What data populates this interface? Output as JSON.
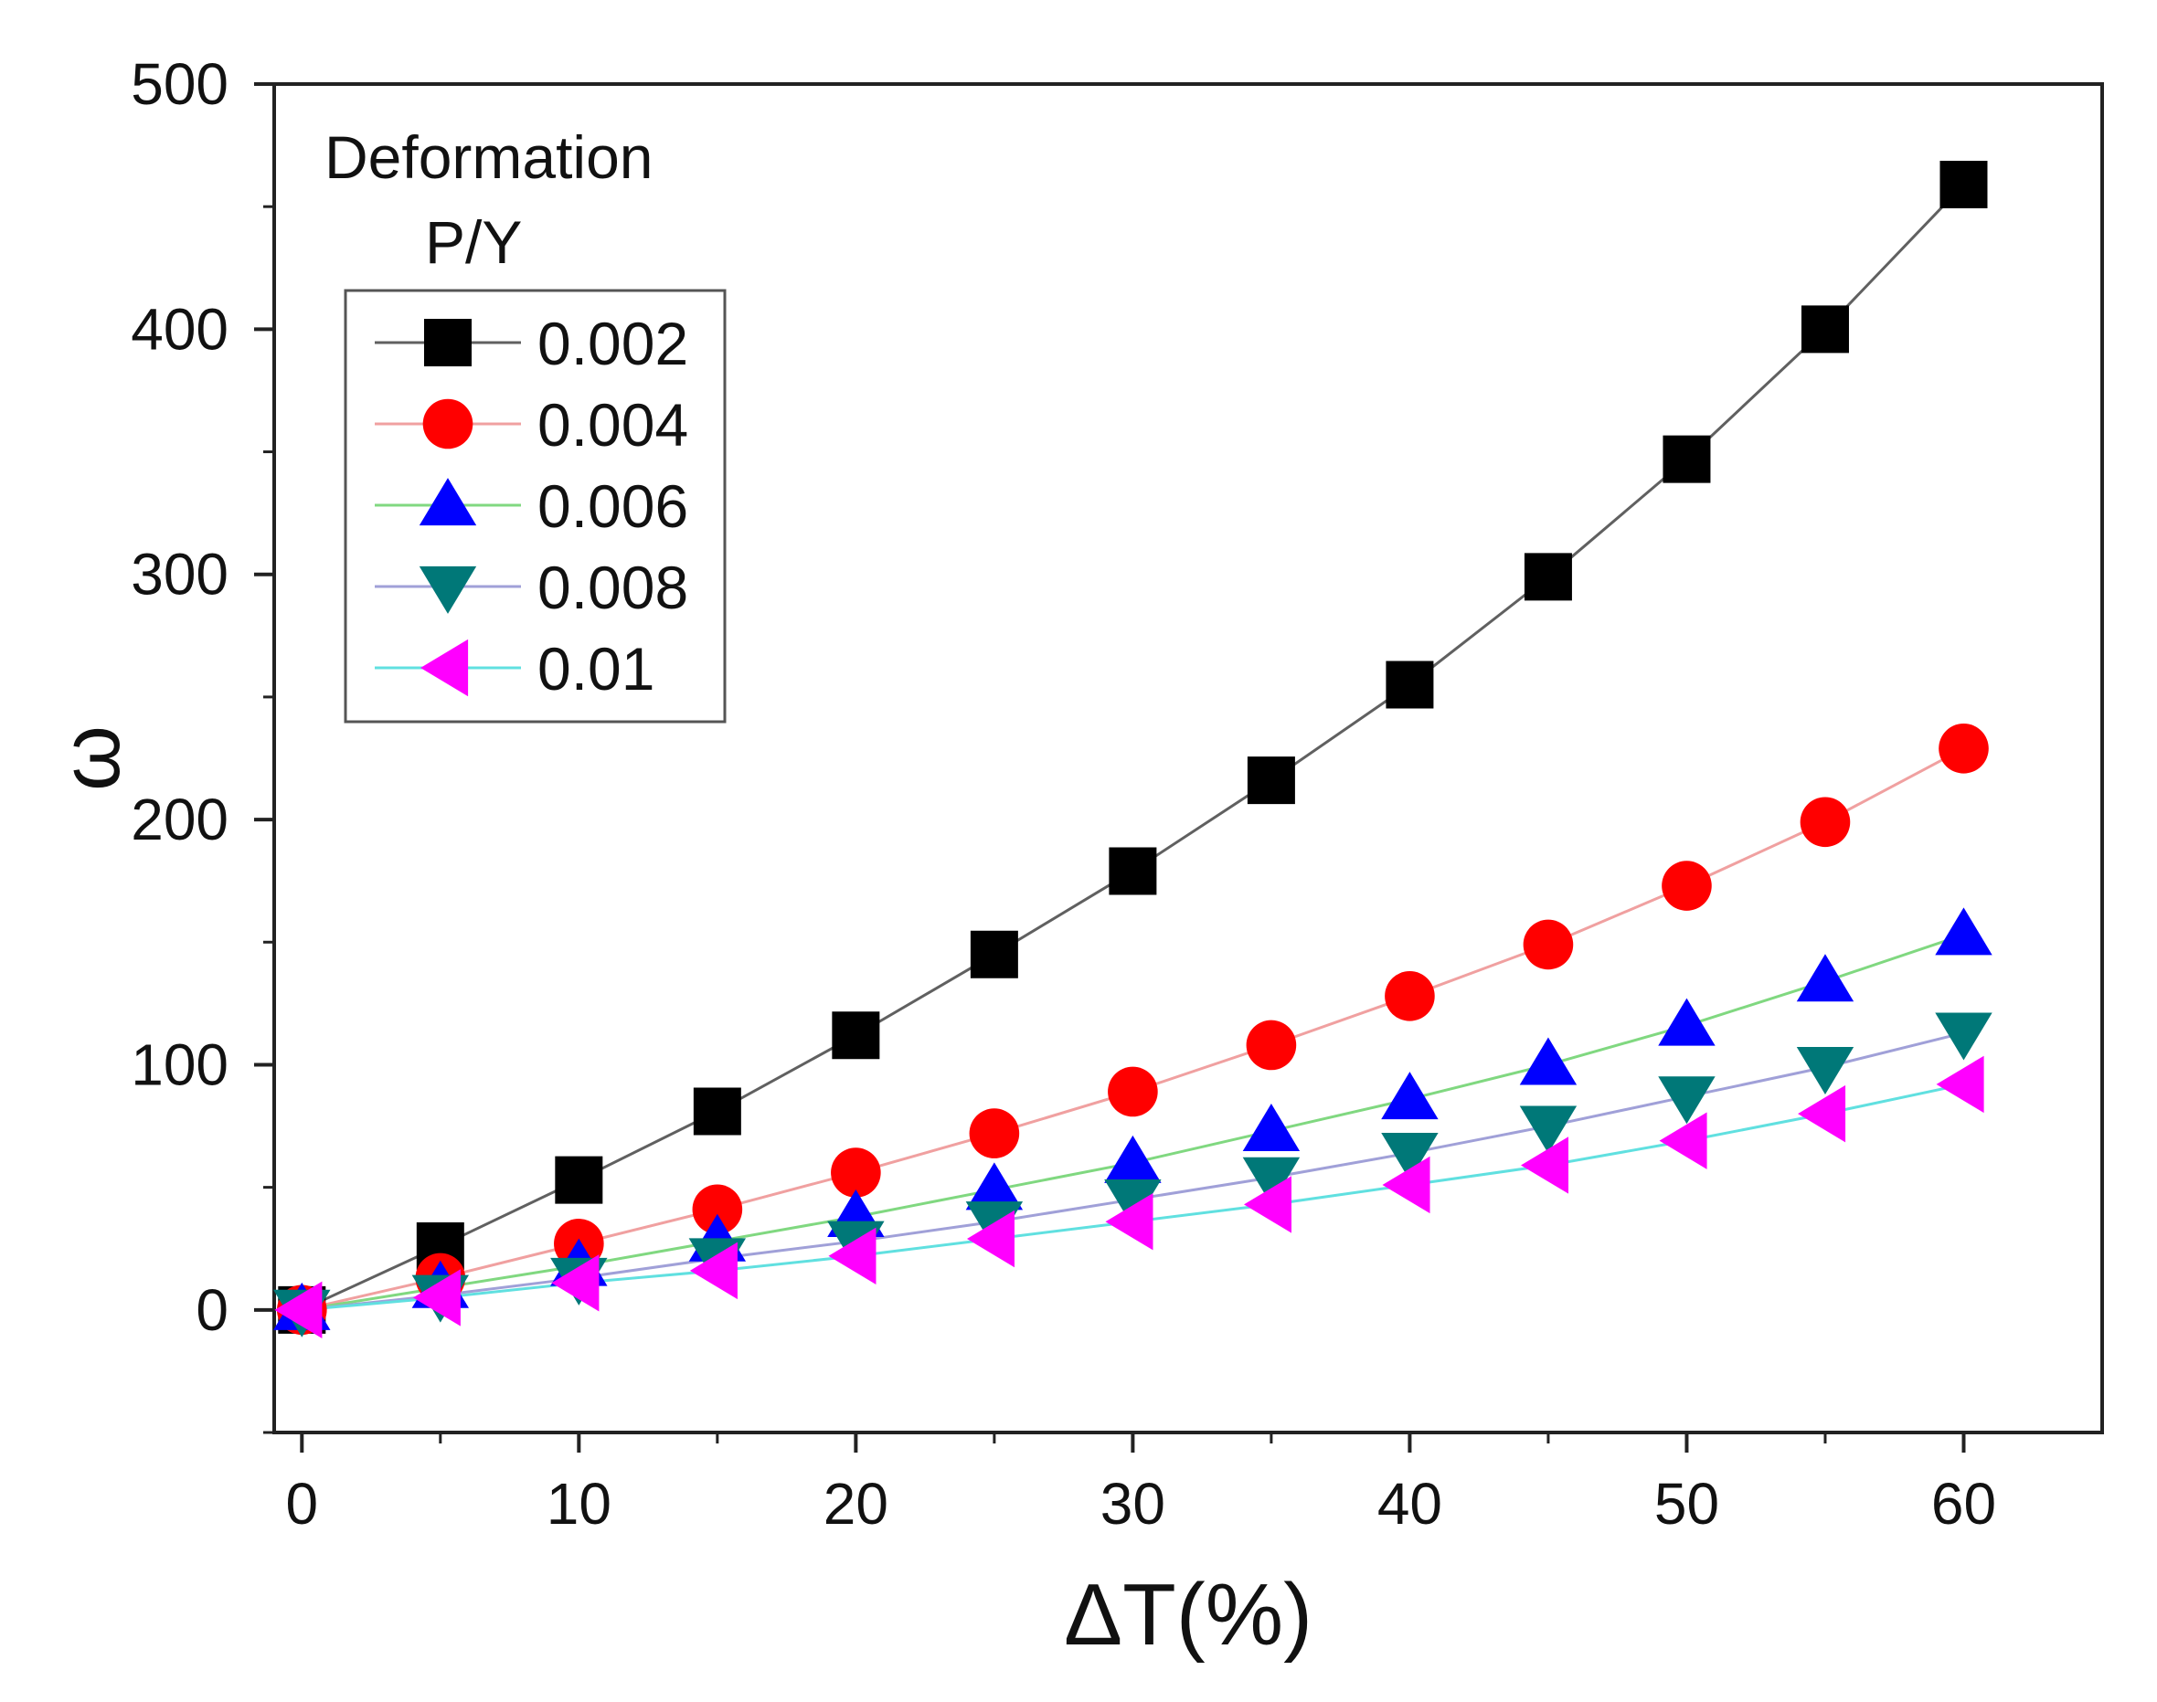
{
  "chart_data": {
    "type": "line",
    "title": "",
    "xlabel": "ΔT(%)",
    "ylabel": "ω",
    "xlim": [
      -1,
      65
    ],
    "ylim": [
      -50,
      500
    ],
    "x_ticks": [
      0,
      10,
      20,
      30,
      40,
      50,
      60
    ],
    "y_ticks": [
      0,
      100,
      200,
      300,
      400,
      500
    ],
    "x_tick_labels": [
      "0",
      "10",
      "20",
      "30",
      "40",
      "50",
      "60"
    ],
    "y_tick_labels": [
      "0",
      "100",
      "200",
      "300",
      "400",
      "500"
    ],
    "grid": false,
    "legend": {
      "heading": "Deformation",
      "subheading": "P/Y",
      "placement": "top-left"
    },
    "x": [
      0,
      5,
      10,
      15,
      20,
      25,
      30,
      35,
      40,
      45,
      50,
      55,
      60
    ],
    "series": [
      {
        "name": "0.002",
        "marker": "square",
        "marker_color": "#000000",
        "line_color": "#606060",
        "values": [
          0,
          26,
          53,
          81,
          112,
          145,
          179,
          216,
          255,
          299,
          347,
          400,
          459
        ]
      },
      {
        "name": "0.004",
        "marker": "circle",
        "marker_color": "#ff0000",
        "line_color": "#f0a0a0",
        "values": [
          0,
          13,
          27,
          41,
          56,
          72,
          89,
          108,
          128,
          149,
          173,
          199,
          229
        ]
      },
      {
        "name": "0.006",
        "marker": "triangle-up",
        "marker_color": "#0000ff",
        "line_color": "#80d880",
        "values": [
          0,
          9,
          18,
          28,
          38,
          49,
          60,
          73,
          86,
          100,
          116,
          134,
          153
        ]
      },
      {
        "name": "0.008",
        "marker": "triangle-down",
        "marker_color": "#007878",
        "line_color": "#a0a0d8",
        "values": [
          0,
          6,
          13,
          21,
          28,
          36,
          45,
          54,
          64,
          75,
          87,
          99,
          113
        ]
      },
      {
        "name": "0.01",
        "marker": "triangle-left",
        "marker_color": "#ff00ff",
        "line_color": "#60e0e0",
        "values": [
          0,
          5,
          11,
          16,
          22,
          29,
          36,
          43,
          51,
          59,
          69,
          80,
          92
        ]
      }
    ]
  }
}
